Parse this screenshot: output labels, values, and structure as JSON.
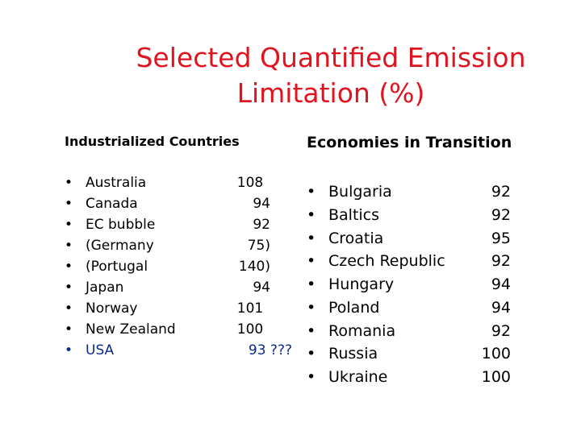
{
  "slide": {
    "title_line1": "Selected Quantified Emission",
    "title_line2": "Limitation (%)"
  },
  "left": {
    "heading": "Industrialized Countries",
    "items": [
      {
        "name": "Australia",
        "value": "108"
      },
      {
        "name": "Canada",
        "value": "94"
      },
      {
        "name": "EC bubble",
        "value": "92"
      },
      {
        "name": "(Germany",
        "value": "75)"
      },
      {
        "name": "(Portugal",
        "value": "140)"
      },
      {
        "name": "Japan",
        "value": "94"
      },
      {
        "name": "Norway",
        "value": "101"
      },
      {
        "name": "New Zealand",
        "value": "100"
      },
      {
        "name": "USA",
        "value": "93 ???"
      }
    ]
  },
  "right": {
    "heading": "Economies in Transition",
    "items": [
      {
        "name": "Bulgaria",
        "value": "92"
      },
      {
        "name": "Baltics",
        "value": "92"
      },
      {
        "name": "Croatia",
        "value": "95"
      },
      {
        "name": "Czech Republic",
        "value": "92"
      },
      {
        "name": "Hungary",
        "value": "94"
      },
      {
        "name": "Poland",
        "value": "94"
      },
      {
        "name": "Romania",
        "value": "92"
      },
      {
        "name": "Russia",
        "value": "100"
      },
      {
        "name": "Ukraine",
        "value": "100"
      }
    ]
  },
  "bullet_glyph": "•",
  "colors": {
    "title": "#e0141e",
    "highlight_row": "#0a2a8c"
  }
}
